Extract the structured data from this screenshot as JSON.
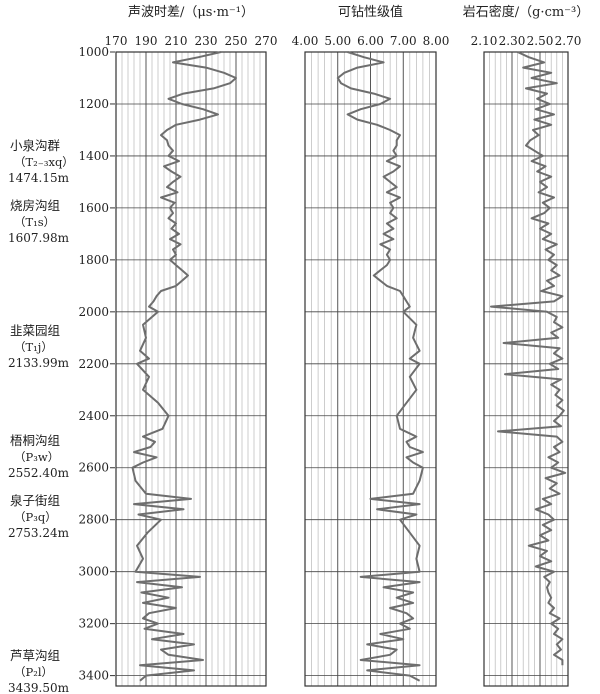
{
  "chart_data": [
    {
      "type": "line",
      "title": "声波时差/（μs·m⁻¹）",
      "xlim": [
        170,
        270
      ],
      "xticks": [
        "170",
        "190",
        "210",
        "230",
        "250",
        "270"
      ],
      "ylim": [
        1000,
        3440
      ],
      "y_inverted": true,
      "grid": true,
      "series": [
        {
          "depth": [
            1000,
            1020,
            1040,
            1060,
            1080,
            1100,
            1120,
            1140,
            1160,
            1180,
            1200,
            1220,
            1240,
            1260,
            1280,
            1300,
            1320,
            1340,
            1360,
            1380,
            1400,
            1420,
            1440,
            1460,
            1480,
            1500,
            1520,
            1540,
            1560,
            1580,
            1600,
            1620,
            1640,
            1660,
            1680,
            1700,
            1720,
            1740,
            1760,
            1780,
            1800,
            1820,
            1840,
            1860,
            1880,
            1900,
            1920,
            1940,
            1960,
            1980,
            2000,
            2050,
            2100,
            2150,
            2180,
            2200,
            2250,
            2300,
            2350,
            2400,
            2450,
            2480,
            2500,
            2520,
            2540,
            2560,
            2580,
            2600,
            2650,
            2700,
            2720,
            2740,
            2760,
            2780,
            2800,
            2850,
            2900,
            2950,
            3000,
            3020,
            3040,
            3060,
            3080,
            3100,
            3120,
            3140,
            3160,
            3180,
            3200,
            3220,
            3240,
            3260,
            3280,
            3300,
            3320,
            3340,
            3360,
            3380,
            3400,
            3420
          ],
          "value": [
            240,
            225,
            208,
            230,
            242,
            250,
            246,
            235,
            215,
            205,
            214,
            228,
            238,
            226,
            210,
            204,
            200,
            204,
            205,
            208,
            205,
            212,
            202,
            207,
            213,
            208,
            204,
            211,
            200,
            209,
            206,
            208,
            205,
            210,
            207,
            212,
            206,
            213,
            208,
            210,
            206,
            210,
            214,
            218,
            214,
            210,
            200,
            197,
            195,
            192,
            198,
            188,
            190,
            186,
            192,
            184,
            192,
            188,
            198,
            205,
            201,
            188,
            196,
            193,
            182,
            197,
            188,
            181,
            183,
            190,
            220,
            182,
            215,
            185,
            200,
            191,
            184,
            188,
            183,
            226,
            184,
            214,
            187,
            205,
            188,
            210,
            192,
            188,
            198,
            189,
            215,
            194,
            222,
            200,
            205,
            228,
            186,
            222,
            190,
            186
          ]
        }
      ]
    },
    {
      "type": "line",
      "title": "可钻性级值",
      "xlim": [
        4.0,
        8.0
      ],
      "xticks": [
        "4.00",
        "5.00",
        "6.00",
        "7.00",
        "8.00"
      ],
      "ylim": [
        1000,
        3440
      ],
      "y_inverted": true,
      "grid": true,
      "series": [
        {
          "depth": [
            1000,
            1020,
            1040,
            1060,
            1080,
            1100,
            1120,
            1140,
            1160,
            1180,
            1200,
            1220,
            1240,
            1260,
            1280,
            1300,
            1320,
            1340,
            1360,
            1380,
            1400,
            1420,
            1440,
            1460,
            1480,
            1500,
            1520,
            1540,
            1560,
            1580,
            1600,
            1620,
            1640,
            1660,
            1680,
            1700,
            1720,
            1740,
            1760,
            1780,
            1800,
            1820,
            1840,
            1860,
            1880,
            1900,
            1920,
            1940,
            1960,
            1980,
            2000,
            2050,
            2100,
            2150,
            2180,
            2200,
            2250,
            2300,
            2350,
            2400,
            2450,
            2480,
            2500,
            2520,
            2540,
            2560,
            2580,
            2600,
            2650,
            2700,
            2720,
            2740,
            2760,
            2780,
            2800,
            2850,
            2900,
            2950,
            3000,
            3020,
            3040,
            3060,
            3080,
            3100,
            3120,
            3140,
            3160,
            3180,
            3200,
            3220,
            3240,
            3260,
            3280,
            3300,
            3320,
            3340,
            3360,
            3380,
            3400,
            3420
          ],
          "value": [
            5.3,
            5.8,
            6.4,
            5.6,
            5.2,
            5.0,
            5.1,
            5.4,
            6.1,
            6.6,
            6.3,
            5.7,
            5.3,
            5.6,
            6.2,
            6.6,
            6.9,
            6.8,
            6.8,
            6.7,
            6.8,
            6.5,
            6.9,
            6.7,
            6.4,
            6.6,
            6.8,
            6.5,
            6.9,
            6.6,
            6.7,
            6.6,
            6.8,
            6.5,
            6.7,
            6.4,
            6.7,
            6.3,
            6.6,
            6.5,
            6.6,
            6.5,
            6.3,
            6.1,
            6.3,
            6.5,
            6.9,
            7.0,
            7.1,
            7.2,
            7.0,
            7.4,
            7.3,
            7.5,
            7.2,
            7.5,
            7.2,
            7.4,
            7.1,
            6.8,
            6.9,
            7.4,
            7.1,
            7.2,
            7.6,
            7.1,
            7.3,
            7.6,
            7.5,
            7.3,
            6.0,
            7.5,
            6.2,
            7.4,
            6.9,
            7.2,
            7.5,
            7.4,
            7.5,
            5.7,
            7.5,
            6.4,
            7.3,
            6.8,
            7.3,
            6.6,
            7.1,
            7.3,
            6.9,
            7.2,
            6.3,
            7.0,
            5.9,
            6.8,
            6.6,
            5.7,
            7.5,
            5.9,
            7.2,
            7.5
          ]
        }
      ]
    },
    {
      "type": "line",
      "title": "岩石密度/（g·cm⁻³）",
      "xlim": [
        2.1,
        2.7
      ],
      "xticks": [
        "2.10",
        "2.30",
        "2.50",
        "2.70"
      ],
      "ylim": [
        1000,
        3440
      ],
      "y_inverted": true,
      "grid": true,
      "series": [
        {
          "depth": [
            1000,
            1020,
            1040,
            1060,
            1080,
            1100,
            1120,
            1140,
            1160,
            1180,
            1200,
            1220,
            1240,
            1260,
            1280,
            1300,
            1320,
            1340,
            1360,
            1380,
            1400,
            1420,
            1440,
            1460,
            1480,
            1500,
            1520,
            1540,
            1560,
            1580,
            1600,
            1620,
            1640,
            1660,
            1680,
            1700,
            1720,
            1740,
            1760,
            1780,
            1800,
            1820,
            1840,
            1860,
            1880,
            1900,
            1920,
            1940,
            1960,
            1980,
            2000,
            2020,
            2040,
            2060,
            2080,
            2100,
            2120,
            2140,
            2160,
            2180,
            2200,
            2220,
            2240,
            2260,
            2280,
            2300,
            2320,
            2340,
            2360,
            2380,
            2400,
            2420,
            2440,
            2460,
            2480,
            2500,
            2520,
            2540,
            2560,
            2580,
            2600,
            2620,
            2640,
            2660,
            2680,
            2700,
            2720,
            2740,
            2760,
            2780,
            2800,
            2820,
            2840,
            2860,
            2880,
            2900,
            2920,
            2940,
            2960,
            2980,
            3000,
            3020,
            3040,
            3060,
            3080,
            3100,
            3120,
            3140,
            3160,
            3180,
            3200,
            3220,
            3240,
            3260,
            3280,
            3300,
            3320,
            3340,
            3360
          ],
          "value": [
            2.34,
            2.42,
            2.53,
            2.38,
            2.58,
            2.44,
            2.62,
            2.4,
            2.55,
            2.48,
            2.57,
            2.47,
            2.6,
            2.46,
            2.58,
            2.45,
            2.49,
            2.43,
            2.4,
            2.46,
            2.52,
            2.44,
            2.54,
            2.48,
            2.58,
            2.5,
            2.55,
            2.49,
            2.6,
            2.52,
            2.57,
            2.53,
            2.44,
            2.56,
            2.5,
            2.58,
            2.52,
            2.62,
            2.54,
            2.6,
            2.56,
            2.62,
            2.58,
            2.64,
            2.55,
            2.6,
            2.51,
            2.66,
            2.6,
            2.15,
            2.55,
            2.62,
            2.6,
            2.66,
            2.58,
            2.63,
            2.24,
            2.64,
            2.6,
            2.66,
            2.57,
            2.63,
            2.25,
            2.65,
            2.58,
            2.64,
            2.61,
            2.66,
            2.62,
            2.67,
            2.64,
            2.6,
            2.65,
            2.2,
            2.62,
            2.66,
            2.6,
            2.64,
            2.56,
            2.63,
            2.58,
            2.68,
            2.54,
            2.62,
            2.57,
            2.64,
            2.52,
            2.58,
            2.47,
            2.56,
            2.6,
            2.52,
            2.58,
            2.5,
            2.56,
            2.42,
            2.55,
            2.5,
            2.58,
            2.47,
            2.6,
            2.53,
            2.57,
            2.55,
            2.56,
            2.58,
            2.56,
            2.6,
            2.57,
            2.64,
            2.58,
            2.63,
            2.6,
            2.66,
            2.62,
            2.65,
            2.6,
            2.66,
            2.66
          ]
        }
      ]
    }
  ],
  "depth_axis": {
    "ticks": [
      "1000",
      "1200",
      "1400",
      "1600",
      "1800",
      "2000",
      "2200",
      "2400",
      "2600",
      "2800",
      "3000",
      "3200",
      "3400"
    ]
  },
  "formations": [
    {
      "name": "小泉沟群",
      "symbol": "（T₂₋₃xq）",
      "depth": "1474.15m"
    },
    {
      "name": "烧房沟组",
      "symbol": "（T₁s）",
      "depth": "1607.98m"
    },
    {
      "name": "韭菜园组",
      "symbol": "（T₁j）",
      "depth": "2133.99m"
    },
    {
      "name": "梧桐沟组",
      "symbol": "（P₃w）",
      "depth": "2552.40m"
    },
    {
      "name": "泉子街组",
      "symbol": "（P₃q）",
      "depth": "2753.24m"
    },
    {
      "name": "芦草沟组",
      "symbol": "（P₂l）",
      "depth": "3439.50m"
    }
  ],
  "colors": {
    "curve": "#6e6e6e",
    "grid_major": "#444444",
    "grid_minor": "#b8b8b8",
    "frame": "#333333"
  }
}
